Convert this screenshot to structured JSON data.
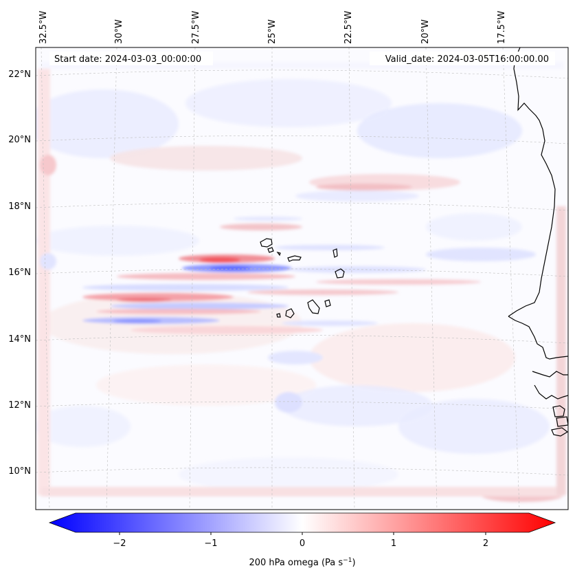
{
  "map": {
    "start_label": "Start date: 2024-03-03_00:00:00",
    "valid_label": "Valid_date: 2024-03-05T16:00:00.00",
    "lon_labels": [
      {
        "key": "32p5w",
        "text": "32.5°W"
      },
      {
        "key": "30w",
        "text": "30°W"
      },
      {
        "key": "27p5w",
        "text": "27.5°W"
      },
      {
        "key": "25w",
        "text": "25°W"
      },
      {
        "key": "22p5w",
        "text": "22.5°W"
      },
      {
        "key": "20w",
        "text": "20°W"
      },
      {
        "key": "17p5w",
        "text": "17.5°W"
      }
    ],
    "lat_labels": [
      {
        "key": "22n",
        "text": "22°N"
      },
      {
        "key": "20n",
        "text": "20°N"
      },
      {
        "key": "18n",
        "text": "18°N"
      },
      {
        "key": "16n",
        "text": "16°N"
      },
      {
        "key": "14n",
        "text": "14°N"
      },
      {
        "key": "12n",
        "text": "12°N"
      },
      {
        "key": "10n",
        "text": "10°N"
      }
    ],
    "features": [
      "cape-verde-islands",
      "west-african-coastline"
    ]
  },
  "colorbar": {
    "ticks": [
      "−2",
      "−1",
      "0",
      "1",
      "2"
    ],
    "label": "200 hPa omega (Pa s",
    "label_sup": "−1",
    "label_tail": ")",
    "range": [
      -2.7,
      2.7
    ],
    "colors": {
      "low": "#0000ff",
      "mid": "#ffffff",
      "high": "#ff0000"
    }
  }
}
